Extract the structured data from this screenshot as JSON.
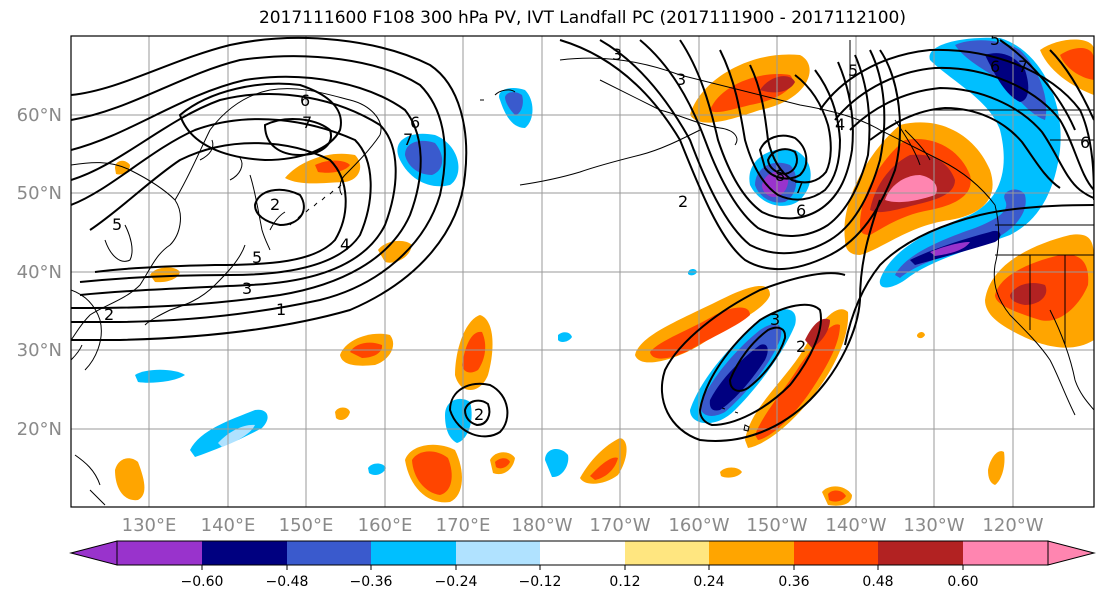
{
  "title": "2017111600 F108 300 hPa PV, IVT Landfall PC (2017111900 - 2017112100)",
  "lat_labels": [
    "60°N",
    "50°N",
    "40°N",
    "30°N",
    "20°N"
  ],
  "lon_labels": [
    "130°E",
    "140°E",
    "150°E",
    "160°E",
    "170°E",
    "180°W",
    "170°W",
    "160°W",
    "150°W",
    "140°W",
    "130°W",
    "120°W"
  ],
  "colorbar": {
    "ticks": [
      "−0.60",
      "−0.48",
      "−0.36",
      "−0.24",
      "−0.12",
      "0.12",
      "0.24",
      "0.36",
      "0.48",
      "0.60"
    ],
    "colors": [
      "#9933cc",
      "#000080",
      "#3a5acd",
      "#00bfff",
      "#b0e2ff",
      "#ffffff",
      "#ffe680",
      "#ffa500",
      "#ff4500",
      "#b22222",
      "#ff85b0"
    ]
  },
  "contour_labels": [
    "6",
    "7",
    "6",
    "7",
    "5",
    "4",
    "3",
    "2",
    "1",
    "2",
    "3",
    "8",
    "7",
    "6",
    "5",
    "4",
    "3",
    "2",
    "2",
    "3",
    "5",
    "6",
    "7",
    "6",
    "5",
    "2"
  ]
}
